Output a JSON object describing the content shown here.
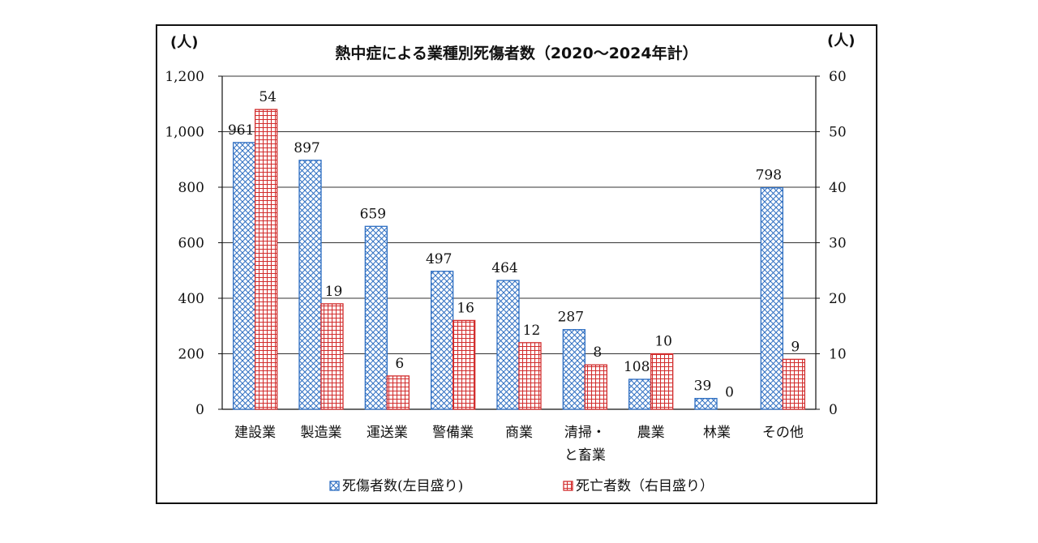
{
  "chart_data": {
    "type": "bar",
    "title": "熱中症による業種別死傷者数（2020～2024年計）",
    "left_axis_unit": "(人)",
    "right_axis_unit": "(人)",
    "categories": [
      [
        "建設業"
      ],
      [
        "製造業"
      ],
      [
        "運送業"
      ],
      [
        "警備業"
      ],
      [
        "商業"
      ],
      [
        "清掃・",
        "と畜業"
      ],
      [
        "農業"
      ],
      [
        "林業"
      ],
      [
        "その他"
      ]
    ],
    "series": [
      {
        "name": "死傷者数(左目盛り)",
        "axis": "left",
        "color": "#2f6fc2",
        "pattern": "diagonal-cross",
        "values": [
          961,
          897,
          659,
          497,
          464,
          287,
          108,
          39,
          798
        ]
      },
      {
        "name": "死亡者数（右目盛り）",
        "axis": "right",
        "color": "#d22d2d",
        "pattern": "grid",
        "values": [
          54,
          19,
          6,
          16,
          12,
          8,
          10,
          0,
          9
        ]
      }
    ],
    "left_axis": {
      "min": 0,
      "max": 1200,
      "ticks": [
        "0",
        "200",
        "400",
        "600",
        "800",
        "1,000",
        "1,200"
      ]
    },
    "right_axis": {
      "min": 0,
      "max": 60,
      "ticks": [
        "0",
        "10",
        "20",
        "30",
        "40",
        "50",
        "60"
      ]
    },
    "grid": true,
    "legend_position": "bottom"
  }
}
